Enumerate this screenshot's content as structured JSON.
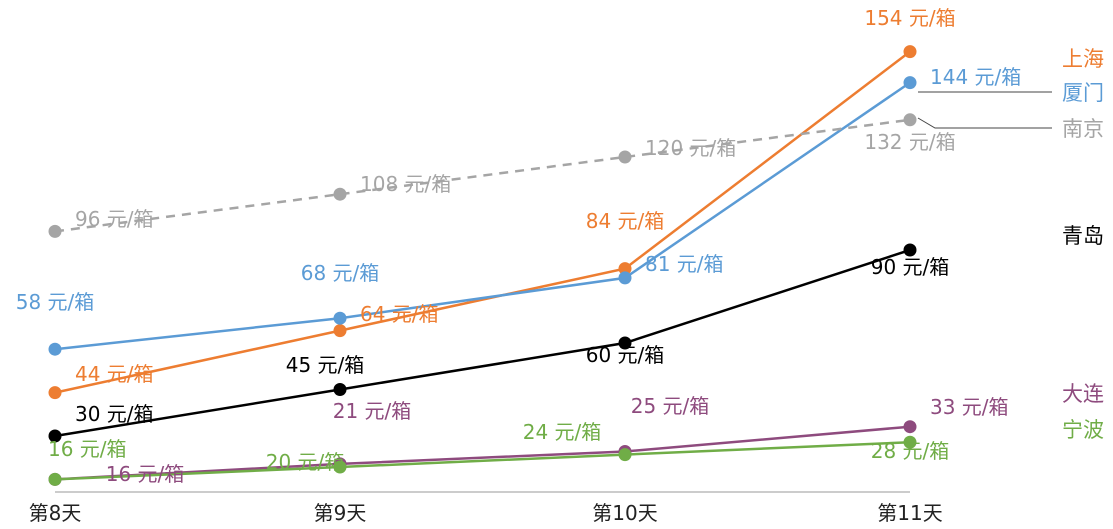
{
  "chart_data": {
    "type": "line",
    "categories": [
      "第8天",
      "第9天",
      "第10天",
      "第11天"
    ],
    "ylim": [
      0,
      160
    ],
    "grid": false,
    "series": [
      {
        "name": "上海",
        "color": "#ED7D31",
        "dashed": false,
        "values": [
          44,
          64,
          84,
          154
        ],
        "labels": [
          "44 元/箱",
          "64 元/箱",
          "84 元/箱",
          "154 元/箱"
        ]
      },
      {
        "name": "厦门",
        "color": "#5B9BD5",
        "dashed": false,
        "values": [
          58,
          68,
          81,
          144
        ],
        "labels": [
          "58 元/箱",
          "68 元/箱",
          "81 元/箱",
          "144 元/箱"
        ]
      },
      {
        "name": "南京",
        "color": "#A5A5A5",
        "dashed": true,
        "values": [
          96,
          108,
          120,
          132
        ],
        "labels": [
          "96 元/箱",
          "108 元/箱",
          "120 元/箱",
          "132 元/箱"
        ]
      },
      {
        "name": "青岛",
        "color": "#000000",
        "dashed": false,
        "values": [
          30,
          45,
          60,
          90
        ],
        "labels": [
          "30 元/箱",
          "45 元/箱",
          "60 元/箱",
          "90 元/箱"
        ]
      },
      {
        "name": "大连",
        "color": "#8E4B7E",
        "dashed": false,
        "values": [
          16,
          21,
          25,
          33
        ],
        "labels": [
          "16 元/箱",
          "21 元/箱",
          "25 元/箱",
          "33 元/箱"
        ]
      },
      {
        "name": "宁波",
        "color": "#70AD47",
        "dashed": false,
        "values": [
          16,
          20,
          24,
          28
        ],
        "labels": [
          "16 元/箱",
          "20 元/箱",
          "24 元/箱",
          "28 元/箱"
        ]
      }
    ]
  }
}
